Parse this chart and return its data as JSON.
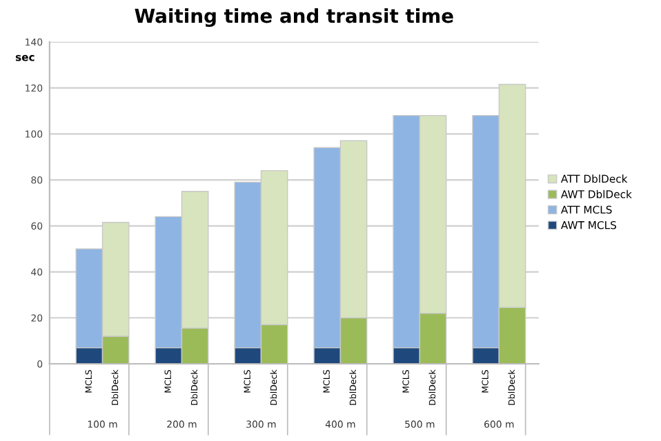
{
  "chart_data": {
    "type": "bar",
    "title": "Waiting time and transit time",
    "ylabel": "sec",
    "categories": [
      "MCLS",
      "DblDeck",
      null,
      "MCLS",
      "DblDeck",
      null,
      "MCLS",
      "DblDeck",
      null,
      "MCLS",
      "DblDeck",
      null,
      "MCLS",
      "DblDeck",
      null,
      "MCLS",
      "DblDeck",
      null
    ],
    "annotations": [
      "100 m",
      "200 m",
      "300 m",
      "400 m",
      "500 m",
      "600 m"
    ],
    "stacked": true,
    "series": [
      {
        "name": "AWT MCLS",
        "color": "#1f497d",
        "values": [
          7,
          null,
          null,
          7,
          null,
          null,
          7,
          null,
          null,
          7,
          null,
          null,
          7,
          null,
          null,
          7,
          null,
          null
        ]
      },
      {
        "name": "ATT MCLS",
        "color": "#8eb4e3",
        "values": [
          43,
          null,
          null,
          57,
          null,
          null,
          72,
          null,
          null,
          87,
          null,
          null,
          101,
          null,
          null,
          101,
          null,
          null
        ]
      },
      {
        "name": "AWT DblDeck",
        "color": "#9bbb59",
        "values": [
          null,
          12,
          null,
          null,
          15.5,
          null,
          null,
          17,
          null,
          null,
          20,
          null,
          null,
          22,
          null,
          null,
          24.5,
          null
        ]
      },
      {
        "name": "ATT DblDeck",
        "color": "#d7e4bd",
        "values": [
          null,
          49.5,
          null,
          null,
          59.5,
          null,
          null,
          67,
          null,
          null,
          77,
          null,
          null,
          86,
          null,
          null,
          97,
          null
        ]
      }
    ],
    "ylim": [
      0,
      140
    ],
    "yticks": [
      0,
      20,
      40,
      60,
      80,
      100,
      120,
      140
    ],
    "grid": "y",
    "legend": "right"
  }
}
